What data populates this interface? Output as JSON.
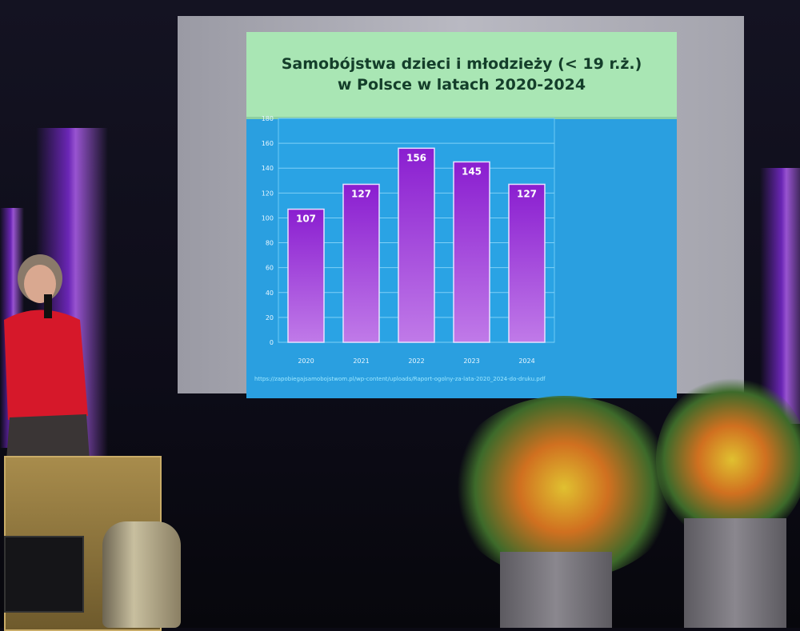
{
  "slide": {
    "title_line1": "Samobójstwa dzieci i młodzieży (< 19 r.ż.)",
    "title_line2": "w Polsce  w latach 2020-2024",
    "source": "https://zapobiegajsamobojstwom.pl/wp-content/uploads/Raport-ogolny-za-lata-2020_2024-do-druku.pdf"
  },
  "colors": {
    "title_band": "#a9e6b4",
    "slide_background": "#2a9fe0",
    "bars": "#9b2ad8"
  },
  "chart_data": {
    "type": "bar",
    "title": "Samobójstwa dzieci i młodzieży (< 19 r.ż.) w Polsce  w latach 2020-2024",
    "categories": [
      "2020",
      "2021",
      "2022",
      "2023",
      "2024"
    ],
    "values": [
      107,
      127,
      156,
      145,
      127
    ],
    "data_labels": [
      "107",
      "127",
      "156",
      "145",
      "127"
    ],
    "y_ticks": [
      "0",
      "20",
      "40",
      "60",
      "80",
      "100",
      "120",
      "140",
      "160",
      "180"
    ],
    "ylim": [
      0,
      180
    ],
    "grid": true,
    "xlabel": "",
    "ylabel": ""
  }
}
